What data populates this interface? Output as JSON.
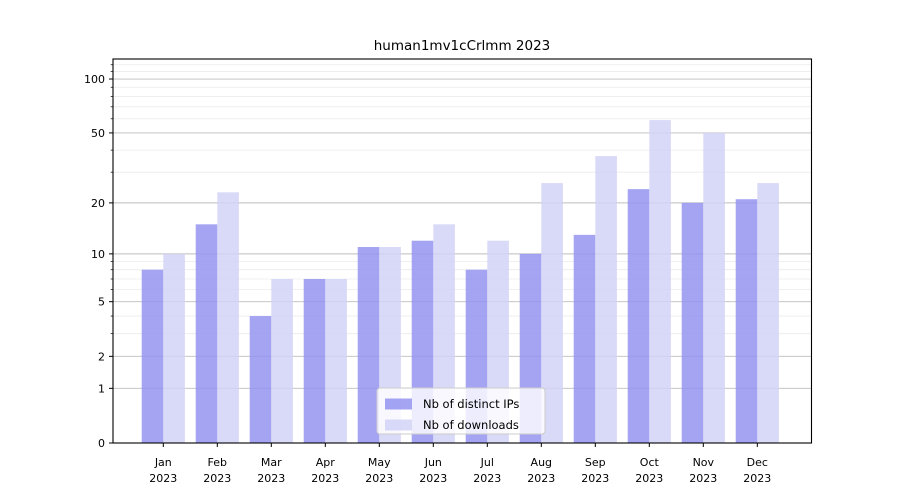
{
  "figure": {
    "title": "human1mv1cCrlmm 2023"
  },
  "chart_data": {
    "type": "bar",
    "title": "human1mv1cCrlmm 2023",
    "categories": [
      "Jan 2023",
      "Feb 2023",
      "Mar 2023",
      "Apr 2023",
      "May 2023",
      "Jun 2023",
      "Jul 2023",
      "Aug 2023",
      "Sep 2023",
      "Oct 2023",
      "Nov 2023",
      "Dec 2023"
    ],
    "series": [
      {
        "name": "Nb of distinct IPs",
        "color": "#9494f1",
        "opacity": 0.85,
        "values": [
          8,
          15,
          4,
          7,
          11,
          12,
          8,
          10,
          13,
          24,
          20,
          21
        ]
      },
      {
        "name": "Nb of downloads",
        "color": "#d2d2f7",
        "opacity": 0.85,
        "values": [
          10,
          23,
          7,
          7,
          11,
          15,
          12,
          26,
          37,
          59,
          50,
          26
        ]
      }
    ],
    "yscale": "log10(value+1)",
    "ylim": [
      0,
      129
    ],
    "ytick_values": [
      0,
      1,
      2,
      5,
      10,
      20,
      50,
      100
    ],
    "ytick_labels": [
      "0",
      "1",
      "2",
      "5",
      "10",
      "20",
      "50",
      "100"
    ],
    "minor_ytick_values": [
      3,
      4,
      6,
      7,
      8,
      9,
      30,
      40,
      60,
      70,
      80,
      90,
      110,
      120
    ],
    "grid": true,
    "xlabel": "",
    "ylabel": "",
    "legend": {
      "position": "bottom-center",
      "entries": [
        "Nb of distinct IPs",
        "Nb of downloads"
      ]
    },
    "colors": {
      "major_grid": "#bdbdbd",
      "minor_grid": "#ebebeb",
      "frame": "#000000",
      "legend_border": "#cccccc",
      "text": "#000000"
    }
  }
}
